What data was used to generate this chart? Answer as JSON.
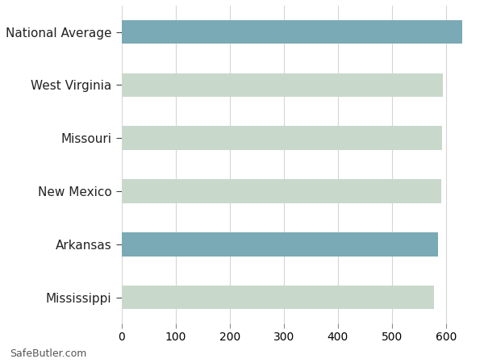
{
  "categories": [
    "Mississippi",
    "Arkansas",
    "New Mexico",
    "Missouri",
    "West Virginia",
    "National Average"
  ],
  "values": [
    578,
    585,
    591,
    592,
    594,
    630
  ],
  "bar_colors": [
    "#c8d9cc",
    "#7aaab5",
    "#c8d9cc",
    "#c8d9cc",
    "#c8d9cc",
    "#7aaab5"
  ],
  "background_color": "#ffffff",
  "grid_color": "#d5d5d5",
  "xlim": [
    0,
    660
  ],
  "xticks": [
    0,
    100,
    200,
    300,
    400,
    500,
    600
  ],
  "footer_text": "SafeButler.com",
  "bar_height": 0.45,
  "label_fontsize": 11,
  "tick_fontsize": 10
}
